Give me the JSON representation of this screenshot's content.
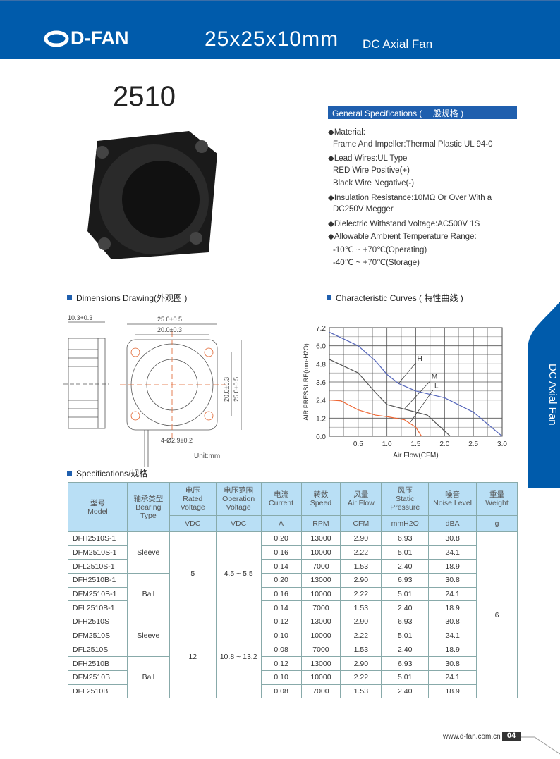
{
  "header": {
    "brand": "D-FAN",
    "title": "25x25x10mm",
    "subtitle": "DC Axial Fan",
    "bg_color": "#005bab"
  },
  "model_number": "2510",
  "general": {
    "title": "General Specifications ( 一般规格 )",
    "lines": [
      "◆Material:",
      "Frame And Impeller:Thermal Plastic UL 94-0",
      "◆Lead Wires:UL Type",
      "RED Wire Positive(+)",
      "Black Wire Negative(-)",
      "◆Insulation Resistance:10MΩ  Or Over With a",
      "DC250V Megger",
      "◆Dielectric Withstand Voltage:AC500V 1S",
      "◆Allowable Ambient Temperature Range:",
      "-10℃ ~ +70℃(Operating)",
      "-40℃ ~ +70℃(Storage)"
    ]
  },
  "dimensions": {
    "title": "Dimensions Drawing(外观图 )",
    "depth": "10.3+0.3",
    "width_outer": "25.0±0.5",
    "width_inner": "20.0±0.3",
    "height_inner": "20.0±0.3",
    "height_outer": "25.0±0.5",
    "holes": "4-Ø2.9±0.2",
    "unit": "Unit:mm"
  },
  "curves_title": "Characteristic Curves ( 特性曲线 )",
  "chart_data": {
    "type": "line",
    "xlabel": "Air Flow(CFM)",
    "ylabel": "AIR PRESSURE(mm-H2O)",
    "xlim": [
      0,
      3.0
    ],
    "ylim": [
      0,
      7.2
    ],
    "xticks": [
      "0.5",
      "1.0",
      "1.5",
      "2.0",
      "2.5",
      "3.0"
    ],
    "yticks": [
      "0.0",
      "1.2",
      "2.4",
      "3.6",
      "4.8",
      "6.0",
      "7.2"
    ],
    "grid": true,
    "series": [
      {
        "name": "H",
        "color": "#5566bb",
        "x": [
          0,
          0.5,
          0.8,
          1.0,
          1.2,
          1.5,
          2.0,
          2.5,
          3.0
        ],
        "y": [
          6.9,
          6.0,
          5.0,
          4.1,
          3.5,
          3.0,
          2.55,
          1.6,
          0
        ]
      },
      {
        "name": "M",
        "color": "#555555",
        "x": [
          0,
          0.5,
          0.8,
          1.0,
          1.3,
          1.7,
          2.1
        ],
        "y": [
          5.1,
          4.2,
          2.9,
          2.1,
          1.8,
          1.4,
          0
        ]
      },
      {
        "name": "L",
        "color": "#ee6633",
        "x": [
          0,
          0.2,
          0.5,
          0.8,
          1.0,
          1.3,
          1.5,
          1.6
        ],
        "y": [
          2.4,
          2.35,
          1.75,
          1.4,
          1.3,
          1.1,
          0.6,
          0
        ]
      }
    ]
  },
  "specs": {
    "title": "Specifications/规格",
    "headers": {
      "model": [
        "型号",
        "Model"
      ],
      "bearing": [
        "轴承类型",
        "Bearing",
        "Type"
      ],
      "rated": [
        "电压",
        "Rated",
        "Voltage"
      ],
      "operation": [
        "电压范围",
        "Operation",
        "Voltage"
      ],
      "current": [
        "电流",
        "Current"
      ],
      "speed": [
        "转数",
        "Speed"
      ],
      "airflow": [
        "风量",
        "Air Flow"
      ],
      "pressure": [
        "风压",
        "Static",
        "Pressure"
      ],
      "noise": [
        "噪音",
        "Noise Level"
      ],
      "weight": [
        "重量",
        "Weight"
      ]
    },
    "units": [
      "VDC",
      "VDC",
      "A",
      "RPM",
      "CFM",
      "mmH2O",
      "dBA",
      "g"
    ],
    "rows": [
      [
        "DFH2510S-1",
        "0.20",
        "13000",
        "2.90",
        "6.93",
        "30.8"
      ],
      [
        "DFM2510S-1",
        "0.16",
        "10000",
        "2.22",
        "5.01",
        "24.1"
      ],
      [
        "DFL2510S-1",
        "0.14",
        "7000",
        "1.53",
        "2.40",
        "18.9"
      ],
      [
        "DFH2510B-1",
        "0.20",
        "13000",
        "2.90",
        "6.93",
        "30.8"
      ],
      [
        "DFM2510B-1",
        "0.16",
        "10000",
        "2.22",
        "5.01",
        "24.1"
      ],
      [
        "DFL2510B-1",
        "0.14",
        "7000",
        "1.53",
        "2.40",
        "18.9"
      ],
      [
        "DFH2510S",
        "0.12",
        "13000",
        "2.90",
        "6.93",
        "30.8"
      ],
      [
        "DFM2510S",
        "0.10",
        "10000",
        "2.22",
        "5.01",
        "24.1"
      ],
      [
        "DFL2510S",
        "0.08",
        "7000",
        "1.53",
        "2.40",
        "18.9"
      ],
      [
        "DFH2510B",
        "0.12",
        "13000",
        "2.90",
        "6.93",
        "30.8"
      ],
      [
        "DFM2510B",
        "0.10",
        "10000",
        "2.22",
        "5.01",
        "24.1"
      ],
      [
        "DFL2510B",
        "0.08",
        "7000",
        "1.53",
        "2.40",
        "18.9"
      ]
    ],
    "bearing": [
      "Sleeve",
      "Ball",
      "Sleeve",
      "Ball"
    ],
    "rated": [
      "5",
      "12"
    ],
    "operation": [
      "4.5 ~ 5.5",
      "10.8 ~ 13.2"
    ],
    "weight": "6"
  },
  "side_tab": "DC Axial Fan",
  "footer": {
    "url": "www.d-fan.com.cn",
    "page": "04"
  }
}
